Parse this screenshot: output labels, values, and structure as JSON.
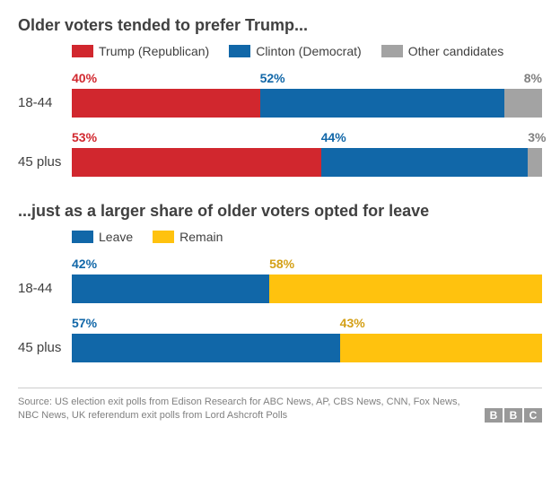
{
  "chart1": {
    "title": "Older voters tended to prefer Trump...",
    "legend": [
      {
        "label": "Trump (Republican)",
        "color": "#d1272e"
      },
      {
        "label": "Clinton (Democrat)",
        "color": "#1167a8"
      },
      {
        "label": "Other candidates",
        "color": "#a3a3a3"
      }
    ],
    "rows": [
      {
        "label": "18-44",
        "segments": [
          {
            "value": 40,
            "label": "40%",
            "color": "#d1272e",
            "labelColor": "#d1272e"
          },
          {
            "value": 52,
            "label": "52%",
            "color": "#1167a8",
            "labelColor": "#1167a8"
          },
          {
            "value": 8,
            "label": "8%",
            "color": "#a3a3a3",
            "labelColor": "#808080",
            "alignRight": true
          }
        ]
      },
      {
        "label": "45 plus",
        "segments": [
          {
            "value": 53,
            "label": "53%",
            "color": "#d1272e",
            "labelColor": "#d1272e"
          },
          {
            "value": 44,
            "label": "44%",
            "color": "#1167a8",
            "labelColor": "#1167a8"
          },
          {
            "value": 3,
            "label": "3%",
            "color": "#a3a3a3",
            "labelColor": "#808080",
            "alignRight": true
          }
        ]
      }
    ]
  },
  "chart2": {
    "title": "...just as a larger share of older voters opted for leave",
    "legend": [
      {
        "label": "Leave",
        "color": "#1167a8"
      },
      {
        "label": "Remain",
        "color": "#ffc20e"
      }
    ],
    "rows": [
      {
        "label": "18-44",
        "segments": [
          {
            "value": 42,
            "label": "42%",
            "color": "#1167a8",
            "labelColor": "#1167a8"
          },
          {
            "value": 58,
            "label": "58%",
            "color": "#ffc20e",
            "labelColor": "#d4a017"
          }
        ]
      },
      {
        "label": "45 plus",
        "segments": [
          {
            "value": 57,
            "label": "57%",
            "color": "#1167a8",
            "labelColor": "#1167a8"
          },
          {
            "value": 43,
            "label": "43%",
            "color": "#ffc20e",
            "labelColor": "#d4a017"
          }
        ]
      }
    ]
  },
  "source": "Source: US election exit polls from Edison Research for ABC News, AP, CBS News, CNN, Fox News, NBC News, UK referendum exit polls from Lord Ashcroft Polls",
  "logo": [
    "B",
    "B",
    "C"
  ]
}
